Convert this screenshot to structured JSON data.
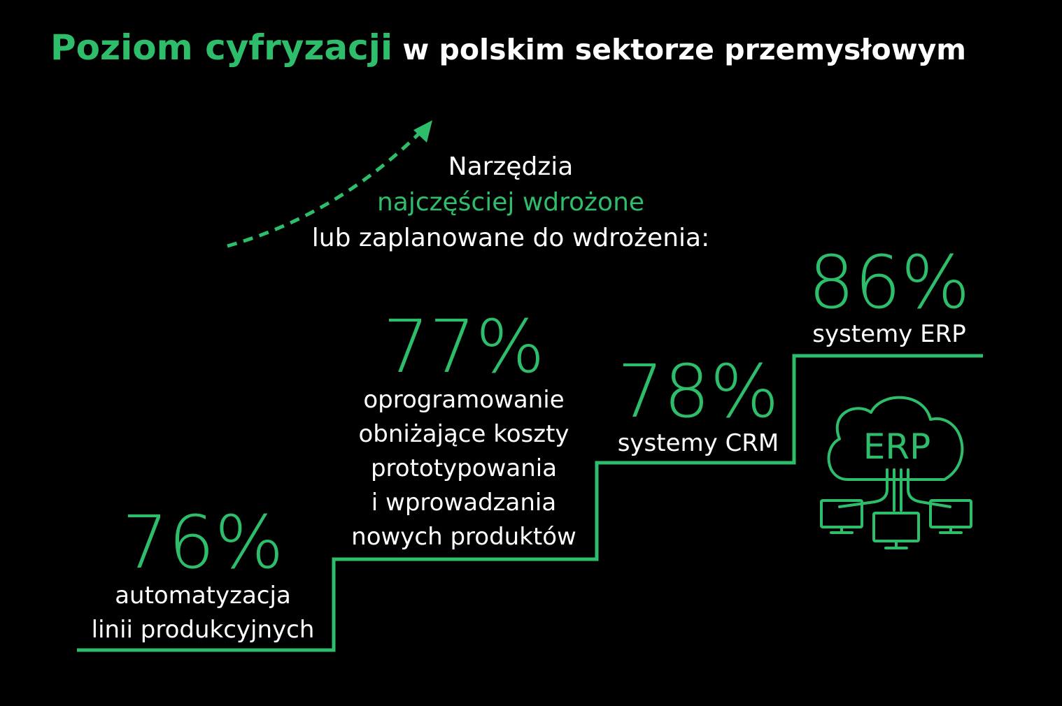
{
  "title": {
    "highlight": "Poziom cyfryzacji",
    "rest": " w polskim sektorze przemysłowym"
  },
  "intro": {
    "line1": "Narzędzia",
    "line2": "najczęściej wdrożone",
    "line3": "lub zaplanowane do wdrożenia:"
  },
  "stats": [
    {
      "value": "76%",
      "label_lines": [
        "automatyzacja",
        "linii produkcyjnych"
      ]
    },
    {
      "value": "77%",
      "label_lines": [
        "oprogramowanie",
        "obniżające koszty",
        "prototypowania",
        "i wprowadzania",
        "nowych produktów"
      ]
    },
    {
      "value": "78%",
      "label_lines": [
        "systemy CRM"
      ]
    },
    {
      "value": "86%",
      "label_lines": [
        "systemy ERP"
      ]
    }
  ],
  "erp_icon": {
    "icon": "cloud-erp-network-icon",
    "text": "ERP"
  },
  "colors": {
    "accent": "#2ebd6b",
    "background": "#000000",
    "text": "#ffffff"
  }
}
